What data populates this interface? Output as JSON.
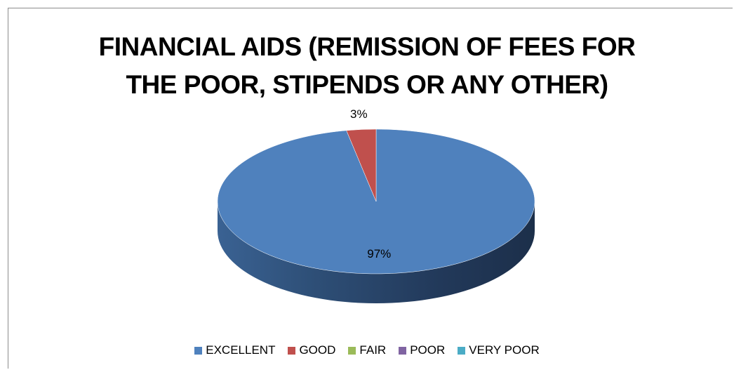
{
  "chart_data": {
    "type": "pie",
    "title_lines": [
      "FINANCIAL AIDS (REMISSION OF FEES FOR",
      "THE POOR, STIPENDS OR ANY OTHER)"
    ],
    "categories": [
      "EXCELLENT",
      "GOOD",
      "FAIR",
      "POOR",
      "VERY POOR"
    ],
    "values": [
      97,
      3,
      0,
      0,
      0
    ],
    "data_labels": [
      "97%",
      "3%",
      "",
      "",
      ""
    ],
    "colors": [
      "#4f81bd",
      "#c0504d",
      "#9bbb59",
      "#8064a2",
      "#4bacc6"
    ],
    "style": "3d",
    "legend_position": "bottom"
  }
}
